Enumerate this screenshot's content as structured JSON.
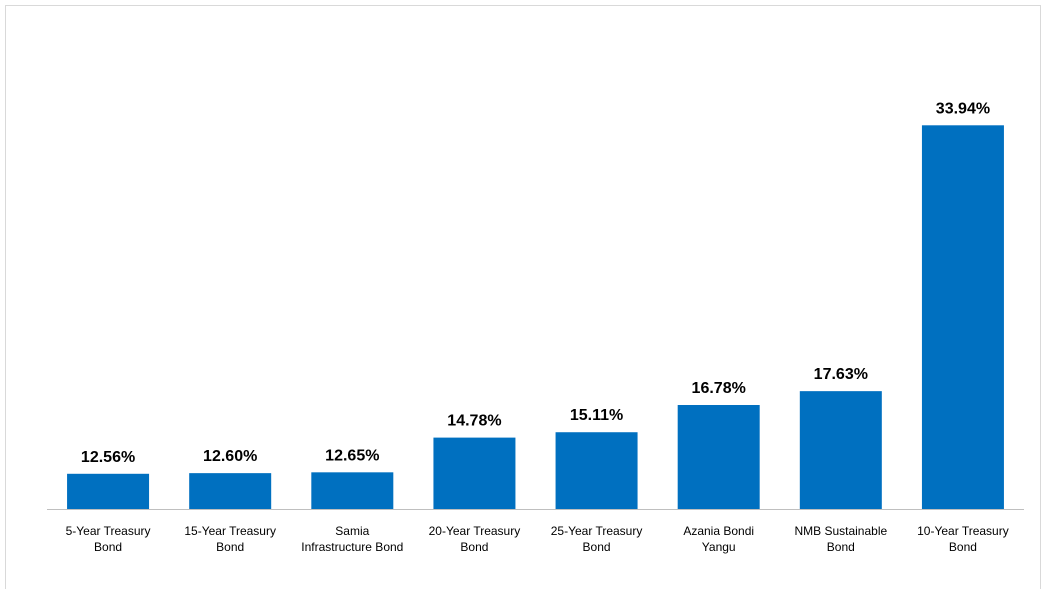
{
  "chart_data": {
    "type": "bar",
    "categories": [
      "5-Year Treasury Bond",
      "15-Year Treasury Bond",
      "Samia Infrastructure Bond",
      "20-Year Treasury Bond",
      "25-Year Treasury Bond",
      "Azania Bondi Yangu",
      "NMB Sustainable Bond",
      "10-Year Treasury Bond"
    ],
    "values": [
      12.56,
      12.6,
      12.65,
      14.78,
      15.11,
      16.78,
      17.63,
      33.94
    ],
    "value_labels": [
      "12.56%",
      "12.60%",
      "12.65%",
      "14.78%",
      "15.11%",
      "16.78%",
      "17.63%",
      "33.94%"
    ],
    "color": "#0070c0",
    "ylim": [
      10.4,
      36
    ]
  }
}
